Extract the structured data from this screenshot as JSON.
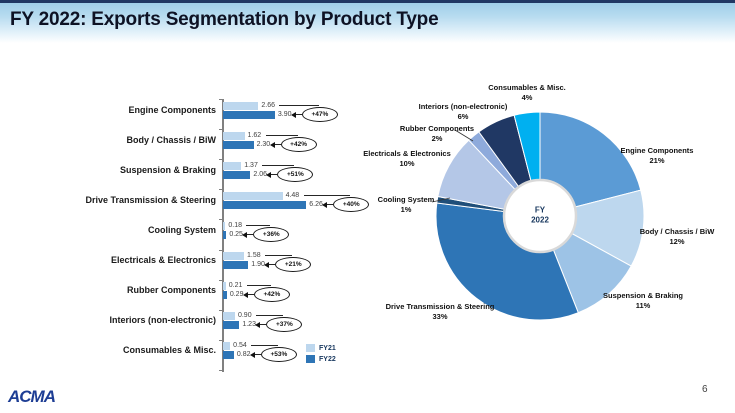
{
  "slide": {
    "title": "FY 2022: Exports Segmentation by Product Type",
    "logo": "ACMA",
    "page_number": "6"
  },
  "colors": {
    "fy21_bar": "#BDD7EE",
    "fy22_bar": "#2E75B6",
    "header_navy": "#203864"
  },
  "pie_center": {
    "line1": "FY",
    "line2": "2022"
  },
  "chart_data": [
    {
      "type": "bar",
      "orientation": "horizontal",
      "title": "",
      "categories": [
        "Engine Components",
        "Body / Chassis / BiW",
        "Suspension & Braking",
        "Drive Transmission & Steering",
        "Cooling System",
        "Electricals & Electronics",
        "Rubber Components",
        "Interiors (non-electronic)",
        "Consumables & Misc."
      ],
      "series": [
        {
          "name": "FY21",
          "color": "#BDD7EE",
          "values": [
            2.66,
            1.62,
            1.37,
            4.48,
            0.18,
            1.58,
            0.21,
            0.9,
            0.54
          ]
        },
        {
          "name": "FY22",
          "color": "#2E75B6",
          "values": [
            3.9,
            2.3,
            2.06,
            6.26,
            0.25,
            1.9,
            0.29,
            1.23,
            0.82
          ]
        }
      ],
      "growth_labels": [
        "+47%",
        "+42%",
        "+51%",
        "+40%",
        "+36%",
        "+21%",
        "+42%",
        "+37%",
        "+53%"
      ],
      "xlim": [
        0,
        7
      ],
      "legend_position": "bottom-right",
      "grid": false
    },
    {
      "type": "pie",
      "title": "FY 2022",
      "start_angle_deg": 0,
      "direction": "clockwise",
      "segments": [
        {
          "label": "Engine Components",
          "pct": 21,
          "color": "#5B9BD5"
        },
        {
          "label": "Body / Chassis / BiW",
          "pct": 12,
          "color": "#BDD7EE"
        },
        {
          "label": "Suspension & Braking",
          "pct": 11,
          "color": "#9DC3E6"
        },
        {
          "label": "Drive Transmission & Steering",
          "pct": 33,
          "color": "#2E75B6"
        },
        {
          "label": "Cooling System",
          "pct": 1,
          "color": "#1F4E79"
        },
        {
          "label": "Electricals & Electronics",
          "pct": 10,
          "color": "#B4C7E7"
        },
        {
          "label": "Rubber Components",
          "pct": 2,
          "color": "#8EAADB"
        },
        {
          "label": "Interiors (non-electronic)",
          "pct": 6,
          "color": "#203864"
        },
        {
          "label": "Consumables & Misc.",
          "pct": 4,
          "color": "#00B0F0"
        }
      ]
    }
  ]
}
